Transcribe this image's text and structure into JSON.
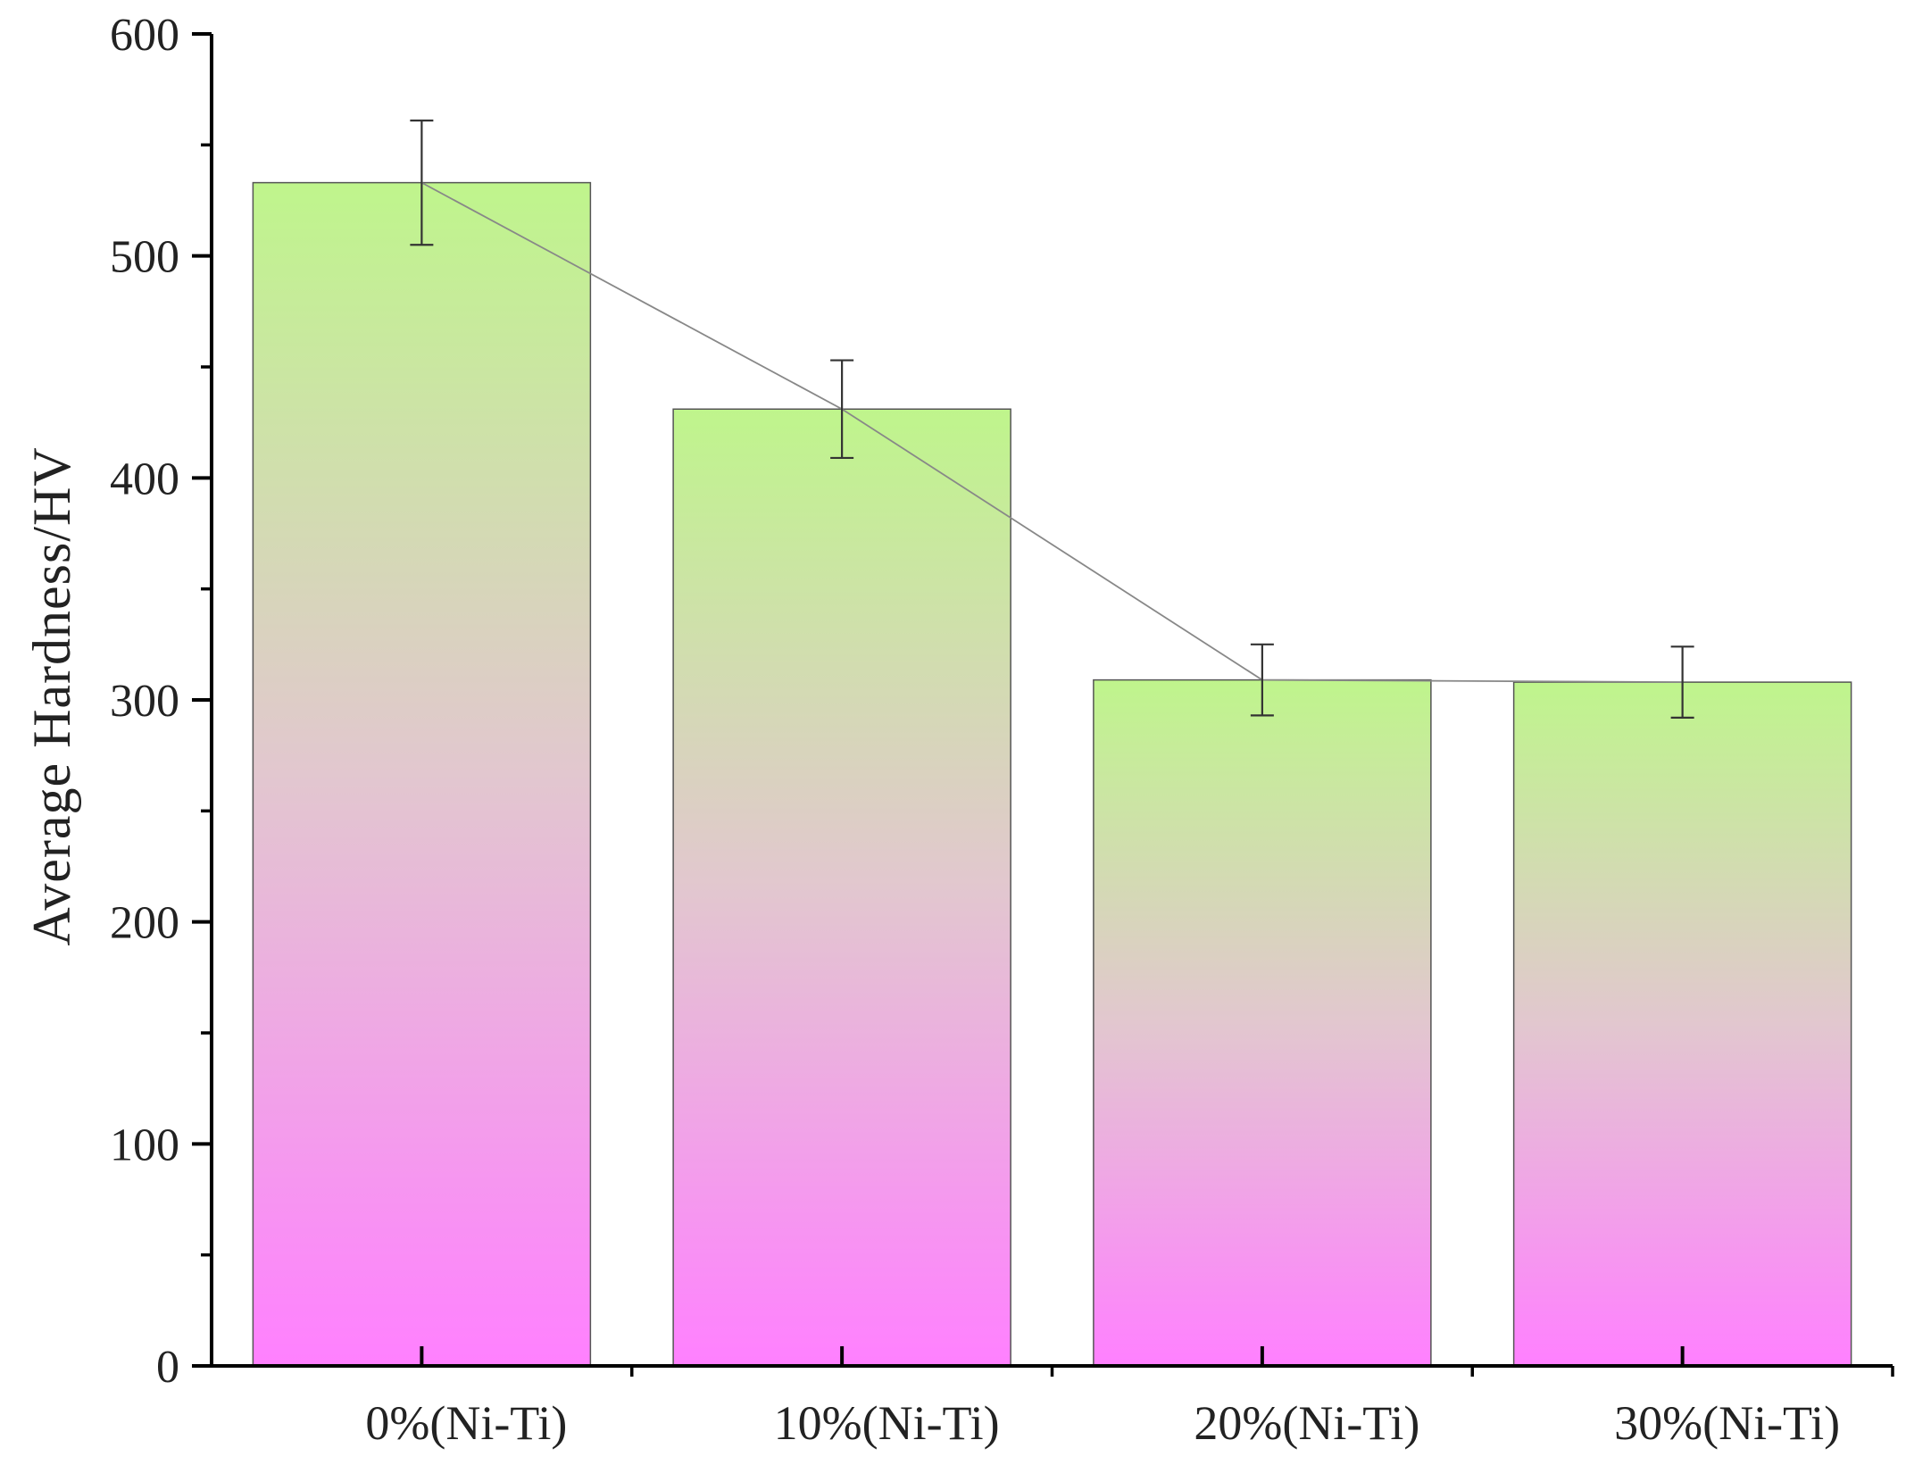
{
  "chart_data": {
    "type": "bar",
    "title": "",
    "xlabel": "",
    "ylabel": "Average Hardness/HV",
    "categories": [
      "0%(Ni-Ti)",
      "10%(Ni-Ti)",
      "20%(Ni-Ti)",
      "30%(Ni-Ti)"
    ],
    "values": [
      533,
      431,
      309,
      308
    ],
    "errors": [
      28,
      22,
      16,
      16
    ],
    "trend_line": true,
    "ylim": [
      0,
      600
    ],
    "yticks": [
      0,
      100,
      200,
      300,
      400,
      500,
      600
    ],
    "grid": false,
    "legend": "none",
    "colors": {
      "bar_top": "#bff58c",
      "bar_mid": "#e2c7cf",
      "bar_bottom": "#ff80ff",
      "bar_edge": "#555555",
      "error_bar": "#333333",
      "trend_line": "#888888",
      "axis": "#000000"
    }
  }
}
